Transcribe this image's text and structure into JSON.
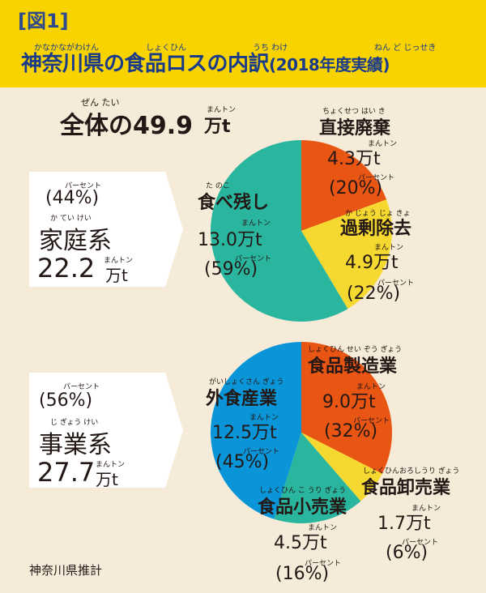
{
  "header": {
    "figure_label": "[図1]",
    "title": "神奈川県の食品ロスの内訳",
    "title_year": "(2018年度実績)",
    "title_rubies": [
      "かなかながわけん",
      "しょくひん",
      "うち わけ",
      "ねん ど じっせき"
    ]
  },
  "total": {
    "ruby": "ぜん たい",
    "label": "全体の49.9",
    "unit_ruby": "まんトン",
    "unit": "万t"
  },
  "percent_ruby": "パーセント",
  "ton_ruby": "まんトン",
  "household": {
    "ruby": "か てい けい",
    "name": "家庭系",
    "amount": "22.2",
    "unit": "万t",
    "share": "(44%)"
  },
  "business": {
    "ruby": "じ ぎょう けい",
    "name": "事業系",
    "amount": "27.7",
    "unit": "万t",
    "share": "(56%)"
  },
  "source": "神奈川県推計",
  "colors": {
    "orange": "#e95513",
    "yellow": "#f6d930",
    "teal": "#2ab59f",
    "blue": "#0a95d8",
    "header": "#f8d300",
    "bg": "#f6ebd8"
  },
  "chart_data": [
    {
      "type": "pie",
      "title": "家庭系",
      "categories": [
        "直接廃棄",
        "過剰除去",
        "食べ残し"
      ],
      "values": [
        4.3,
        4.9,
        13.0
      ],
      "percent_labels": [
        "(20%)",
        "(22%)",
        "(59%)"
      ],
      "amount_labels": [
        "4.3万t",
        "4.9万t",
        "13.0万t"
      ],
      "rubies": [
        "ちょくせつ はい き",
        "か じょう じょ きょ",
        "た  のこ"
      ],
      "colors": [
        "#e95513",
        "#f6d930",
        "#2ab59f"
      ]
    },
    {
      "type": "pie",
      "title": "事業系",
      "categories": [
        "食品製造業",
        "食品卸売業",
        "食品小売業",
        "外食産業"
      ],
      "values": [
        9.0,
        1.7,
        4.5,
        12.5
      ],
      "percent_labels": [
        "(32%)",
        "(6%)",
        "(16%)",
        "(45%)"
      ],
      "amount_labels": [
        "9.0万t",
        "1.7万t",
        "4.5万t",
        "12.5万t"
      ],
      "rubies": [
        "しょくひん せい ぞう ぎょう",
        "しょくひんおろしうり ぎょう",
        "しょくひん こ うり ぎょう",
        "がいしょくさん ぎょう"
      ],
      "colors": [
        "#e95513",
        "#f6d930",
        "#2ab59f",
        "#0a95d8"
      ]
    }
  ]
}
